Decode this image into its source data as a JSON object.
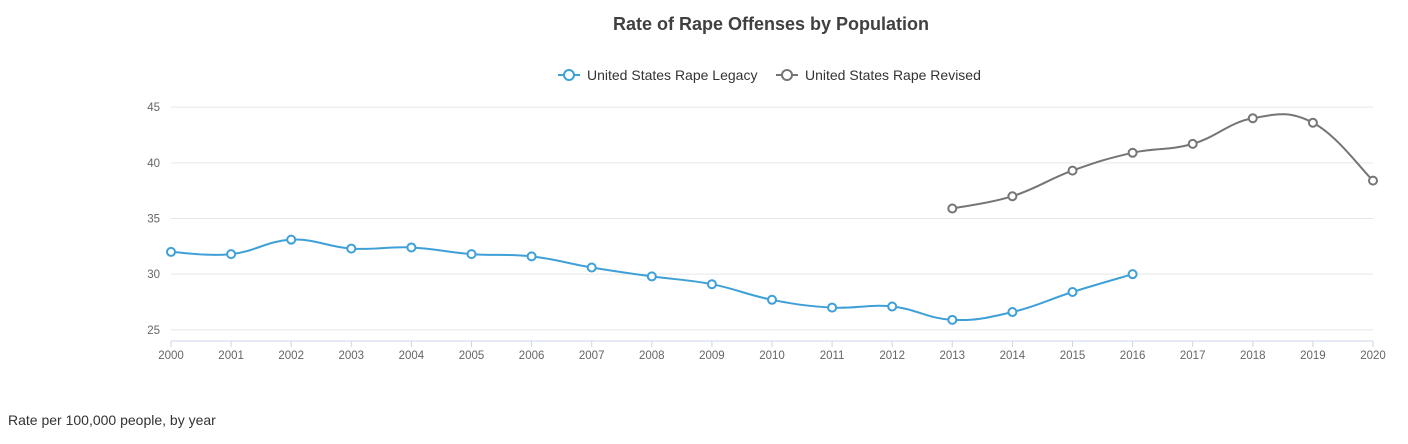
{
  "chart_data": {
    "type": "line",
    "title": "Rate of Rape Offenses by Population",
    "x": [
      2000,
      2001,
      2002,
      2003,
      2004,
      2005,
      2006,
      2007,
      2008,
      2009,
      2010,
      2011,
      2012,
      2013,
      2014,
      2015,
      2016,
      2017,
      2018,
      2019,
      2020
    ],
    "xlim": [
      2000,
      2020
    ],
    "ylim": [
      24,
      46
    ],
    "yticks": [
      25,
      30,
      35,
      40,
      45
    ],
    "grid": true,
    "legend": "top-center",
    "series": [
      {
        "name": "United States Rape Legacy",
        "color": "#3fa0d8",
        "points": [
          [
            2000,
            32.0
          ],
          [
            2001,
            31.8
          ],
          [
            2002,
            33.1
          ],
          [
            2003,
            32.3
          ],
          [
            2004,
            32.4
          ],
          [
            2005,
            31.8
          ],
          [
            2006,
            31.6
          ],
          [
            2007,
            30.6
          ],
          [
            2008,
            29.8
          ],
          [
            2009,
            29.1
          ],
          [
            2010,
            27.7
          ],
          [
            2011,
            27.0
          ],
          [
            2012,
            27.1
          ],
          [
            2013,
            25.9
          ],
          [
            2014,
            26.6
          ],
          [
            2015,
            28.4
          ],
          [
            2016,
            30.0
          ]
        ]
      },
      {
        "name": "United States Rape Revised",
        "color": "#757575",
        "points": [
          [
            2013,
            35.9
          ],
          [
            2014,
            37.0
          ],
          [
            2015,
            39.3
          ],
          [
            2016,
            40.9
          ],
          [
            2017,
            41.7
          ],
          [
            2018,
            44.0
          ],
          [
            2019,
            43.6
          ],
          [
            2020,
            38.4
          ]
        ]
      }
    ]
  },
  "caption": "Rate per 100,000 people, by year"
}
